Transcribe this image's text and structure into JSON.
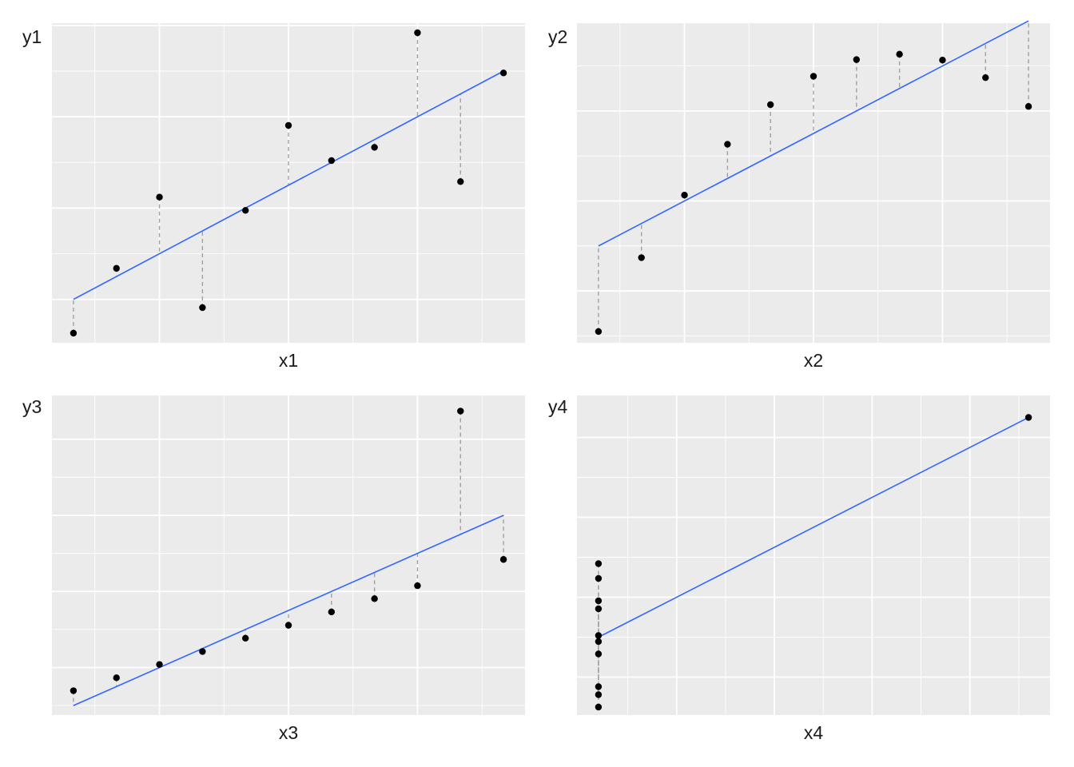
{
  "chart_data": [
    {
      "type": "scatter",
      "xlabel": "x1",
      "ylabel": "y1",
      "xlim": [
        3.5,
        14.5
      ],
      "ylim": [
        4.05,
        11.05
      ],
      "x_grid_major": [
        6,
        9,
        12
      ],
      "x_grid_minor": [
        4.5,
        7.5,
        10.5,
        13.5
      ],
      "y_grid_major": [
        5,
        7,
        9,
        11
      ],
      "y_grid_minor": [
        4,
        6,
        8,
        10
      ],
      "points": {
        "x": [
          10,
          8,
          13,
          9,
          11,
          14,
          6,
          4,
          12,
          7,
          5
        ],
        "y": [
          8.04,
          6.95,
          7.58,
          8.81,
          8.33,
          9.96,
          7.24,
          4.26,
          10.84,
          4.82,
          5.68
        ]
      },
      "fit": {
        "intercept": 3.0,
        "slope": 0.5
      },
      "grid": true,
      "residual_lines": true
    },
    {
      "type": "scatter",
      "xlabel": "x2",
      "ylabel": "y2",
      "xlim": [
        3.5,
        14.5
      ],
      "ylim": [
        2.85,
        9.95
      ],
      "x_grid_major": [
        6,
        9,
        12
      ],
      "x_grid_minor": [
        4.5,
        7.5,
        10.5,
        13.5
      ],
      "y_grid_major": [
        4,
        6,
        8
      ],
      "y_grid_minor": [
        3,
        5,
        7,
        9
      ],
      "points": {
        "x": [
          10,
          8,
          13,
          9,
          11,
          14,
          6,
          4,
          12,
          7,
          5
        ],
        "y": [
          9.14,
          8.14,
          8.74,
          8.77,
          9.26,
          8.1,
          6.13,
          3.1,
          9.13,
          7.26,
          4.74
        ]
      },
      "fit": {
        "intercept": 3.0,
        "slope": 0.5
      },
      "grid": true,
      "residual_lines": true
    },
    {
      "type": "scatter",
      "xlabel": "x3",
      "ylabel": "y3",
      "xlim": [
        3.5,
        14.5
      ],
      "ylim": [
        4.75,
        13.15
      ],
      "x_grid_major": [
        6,
        9,
        12
      ],
      "x_grid_minor": [
        4.5,
        7.5,
        10.5,
        13.5
      ],
      "y_grid_major": [
        6,
        8,
        10,
        12
      ],
      "y_grid_minor": [
        5,
        7,
        9,
        11
      ],
      "points": {
        "x": [
          10,
          8,
          13,
          9,
          11,
          14,
          6,
          4,
          12,
          7,
          5
        ],
        "y": [
          7.46,
          6.77,
          12.74,
          7.11,
          7.81,
          8.84,
          6.08,
          5.39,
          8.15,
          6.42,
          5.73
        ]
      },
      "fit": {
        "intercept": 3.0,
        "slope": 0.5
      },
      "grid": true,
      "residual_lines": true
    },
    {
      "type": "scatter",
      "xlabel": "x4",
      "ylabel": "y4",
      "xlim": [
        7.45,
        19.55
      ],
      "ylim": [
        5.05,
        13.05
      ],
      "x_grid_major": [
        10,
        12.5,
        15,
        17.5
      ],
      "x_grid_minor": [
        8.75,
        11.25,
        13.75,
        16.25,
        18.75
      ],
      "y_grid_major": [
        6,
        8,
        10,
        12
      ],
      "y_grid_minor": [
        5,
        7,
        9,
        11
      ],
      "points": {
        "x": [
          8,
          8,
          8,
          8,
          8,
          8,
          8,
          19,
          8,
          8,
          8
        ],
        "y": [
          6.58,
          5.76,
          7.71,
          8.84,
          8.47,
          7.04,
          5.25,
          12.5,
          5.56,
          7.91,
          6.89
        ]
      },
      "fit": {
        "intercept": 3.0,
        "slope": 0.5
      },
      "grid": true,
      "residual_lines": true
    }
  ],
  "colors": {
    "panel_background": "#ebebeb",
    "grid": "#ffffff",
    "point": "#000000",
    "fit_line": "#3366ff",
    "residual": "#a0a0a0"
  }
}
